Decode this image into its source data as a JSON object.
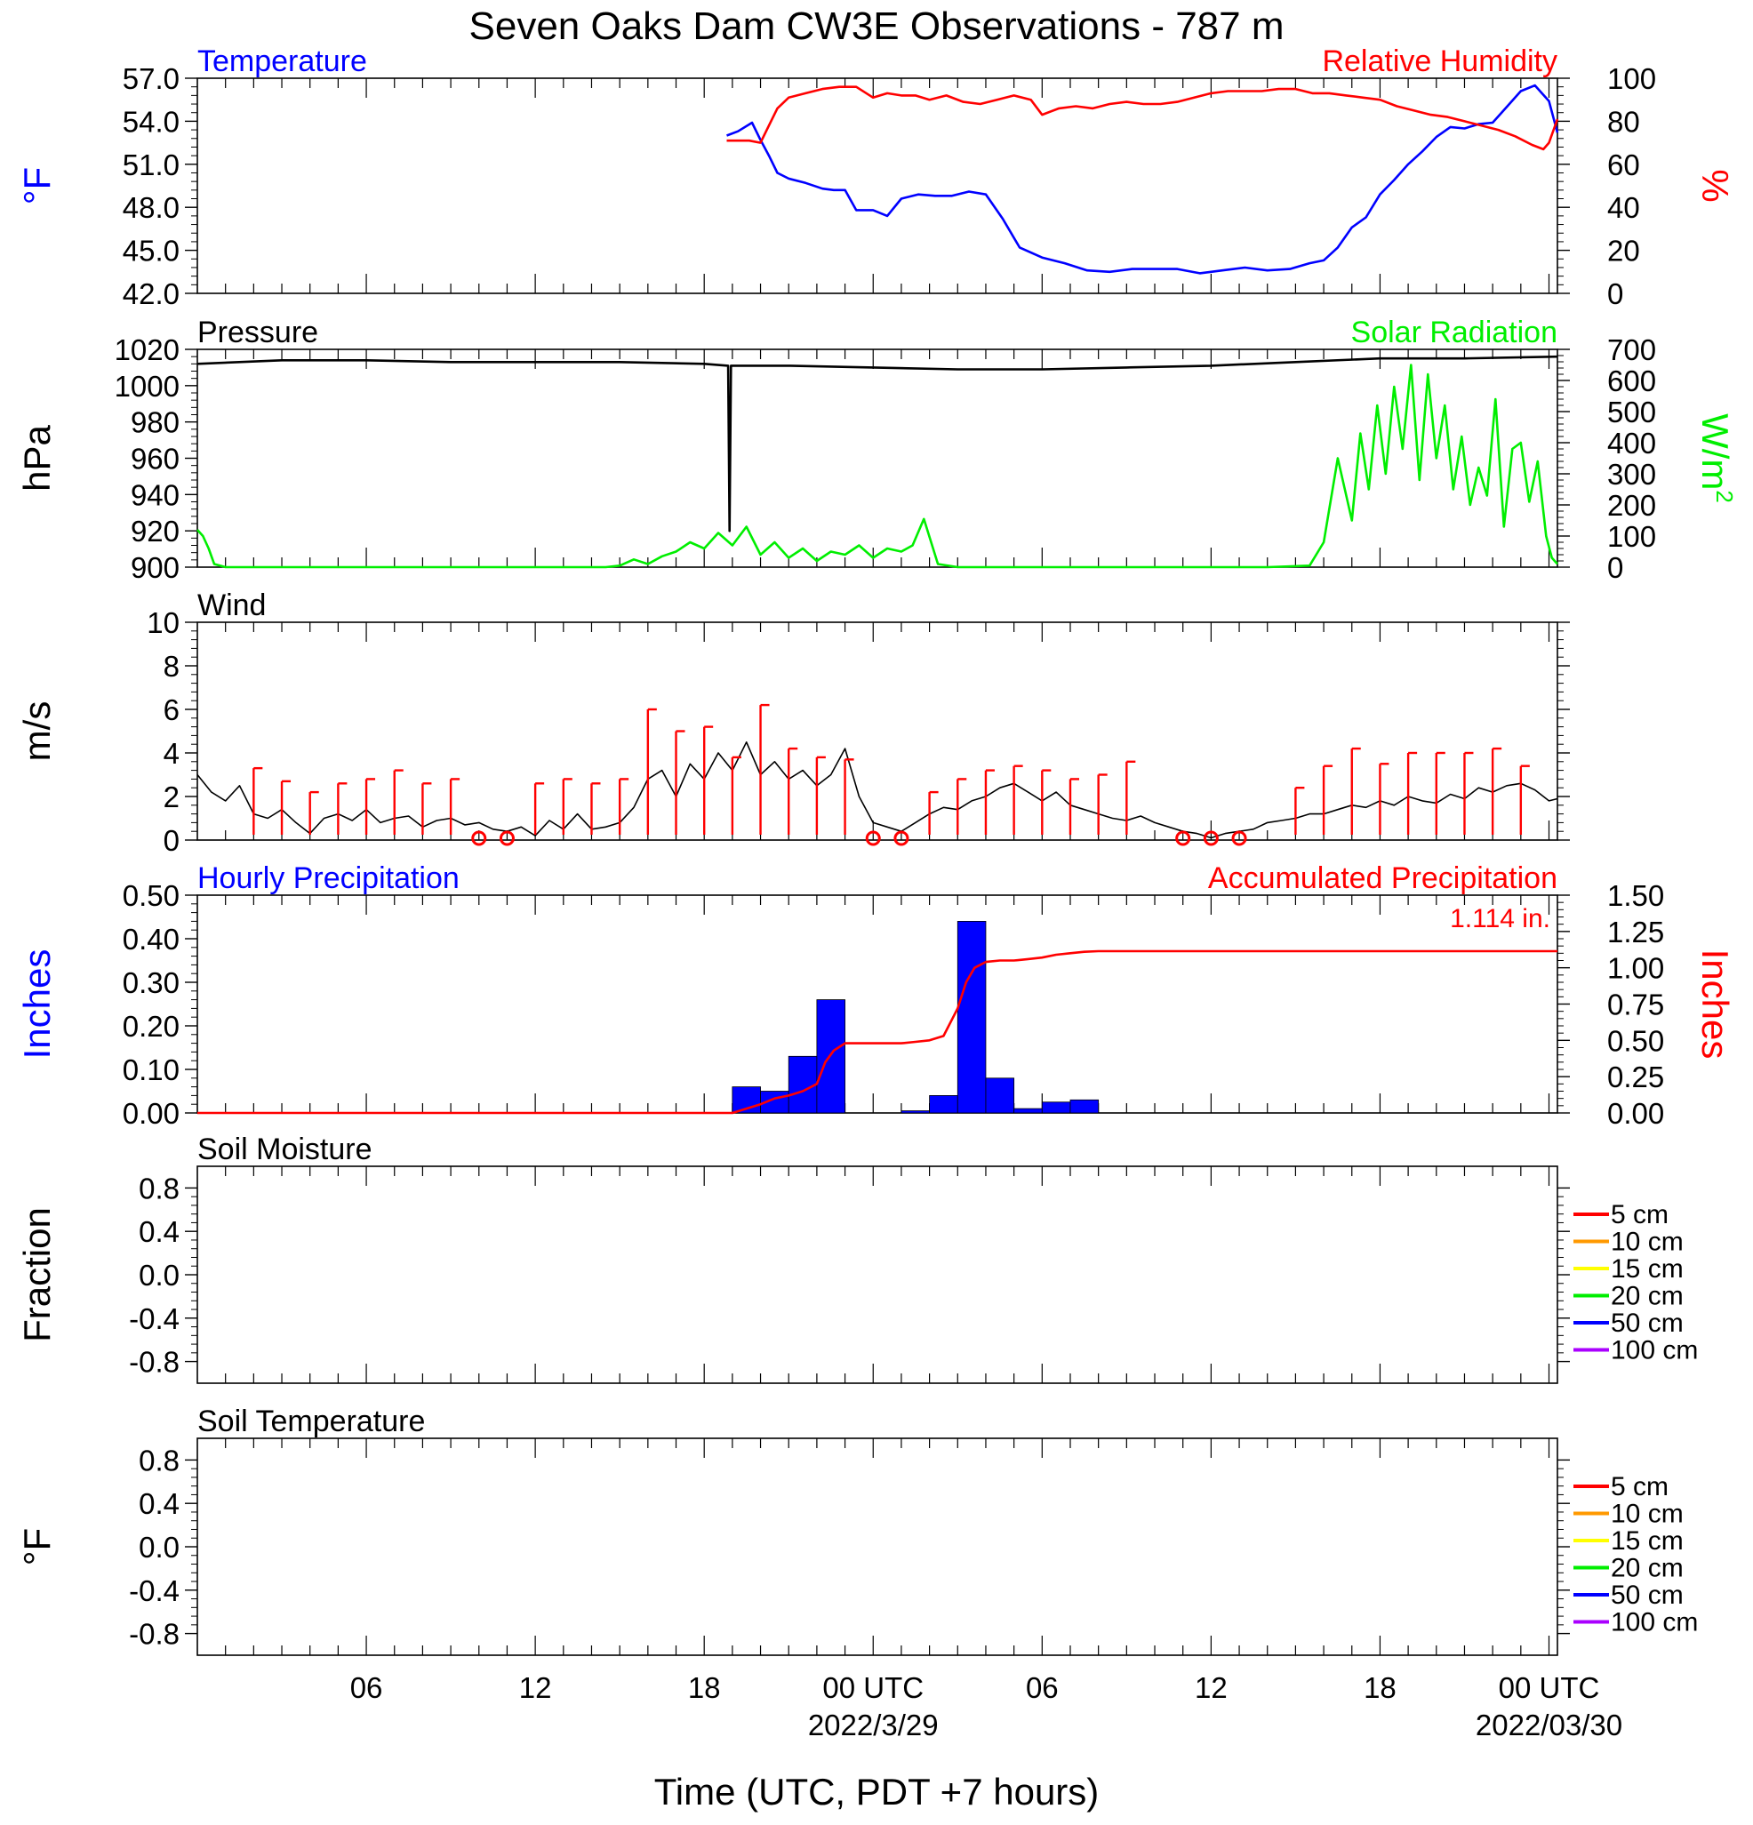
{
  "title": "Seven Oaks Dam CW3E Observations - 787 m",
  "xlabel": "Time (UTC, PDT +7 hours)",
  "x_ticks": [
    {
      "hour": 6,
      "label": "06",
      "sub": ""
    },
    {
      "hour": 12,
      "label": "12",
      "sub": ""
    },
    {
      "hour": 18,
      "label": "18",
      "sub": ""
    },
    {
      "hour": 24,
      "label": "00 UTC",
      "sub": "2022/3/29"
    },
    {
      "hour": 30,
      "label": "06",
      "sub": ""
    },
    {
      "hour": 36,
      "label": "12",
      "sub": ""
    },
    {
      "hour": 42,
      "label": "18",
      "sub": ""
    },
    {
      "hour": 48,
      "label": "00 UTC",
      "sub": "2022/03/30"
    }
  ],
  "colors": {
    "temperature": "#0000ff",
    "humidity": "#ff0000",
    "pressure": "#000000",
    "solar": "#00ee00",
    "wind": "#000000",
    "gust": "#ff0000",
    "hourly_precip": "#0000ff",
    "accum_precip": "#ff0000"
  },
  "chart_data": [
    {
      "id": "temp_rh",
      "type": "line",
      "left_title": "Temperature",
      "right_title": "Relative Humidity",
      "ylabel_left": "°F",
      "ylabel_right": "%",
      "ylim_left": [
        42.0,
        57.0
      ],
      "yticks_left": [
        "57.0",
        "54.0",
        "51.0",
        "48.0",
        "45.0",
        "42.0"
      ],
      "ylim_right": [
        0,
        100
      ],
      "yticks_right": [
        "100",
        "80",
        "60",
        "40",
        "20",
        "0"
      ],
      "series": [
        {
          "name": "Temperature",
          "axis": "left",
          "x": [
            18.8,
            19.2,
            19.7,
            20.0,
            20.3,
            20.6,
            21.0,
            21.6,
            22.2,
            22.6,
            23.0,
            23.4,
            24.0,
            24.5,
            25.0,
            25.6,
            26.2,
            26.8,
            27.4,
            28.0,
            28.6,
            29.2,
            30.0,
            30.8,
            31.6,
            32.4,
            33.2,
            34.0,
            34.8,
            35.6,
            36.4,
            37.2,
            38.0,
            38.8,
            39.5,
            40.0,
            40.5,
            41.0,
            41.5,
            42.0,
            42.5,
            43.0,
            43.5,
            44.0,
            44.5,
            45.0,
            45.5,
            46.0,
            46.5,
            47.0,
            47.5,
            48.0,
            48.3
          ],
          "y": [
            53.0,
            53.3,
            53.9,
            52.7,
            51.6,
            50.4,
            50.0,
            49.7,
            49.3,
            49.2,
            49.2,
            47.8,
            47.8,
            47.4,
            48.6,
            48.9,
            48.8,
            48.8,
            49.1,
            48.9,
            47.2,
            45.2,
            44.5,
            44.1,
            43.6,
            43.5,
            43.7,
            43.7,
            43.7,
            43.4,
            43.6,
            43.8,
            43.6,
            43.7,
            44.1,
            44.3,
            45.2,
            46.6,
            47.3,
            48.9,
            49.9,
            51.0,
            51.9,
            52.9,
            53.6,
            53.5,
            53.8,
            53.9,
            55.0,
            56.1,
            56.5,
            55.4,
            53.2
          ]
        },
        {
          "name": "Relative Humidity",
          "axis": "right",
          "x": [
            18.8,
            19.2,
            19.6,
            20.0,
            20.3,
            20.6,
            21.0,
            21.6,
            22.2,
            22.8,
            23.4,
            24.0,
            24.5,
            25.0,
            25.5,
            26.0,
            26.6,
            27.2,
            27.8,
            28.4,
            29.0,
            29.6,
            30.0,
            30.6,
            31.2,
            31.8,
            32.4,
            33.0,
            33.6,
            34.2,
            34.8,
            35.4,
            36.0,
            36.6,
            37.2,
            37.8,
            38.4,
            39.0,
            39.6,
            40.2,
            40.8,
            41.4,
            42.0,
            42.6,
            43.2,
            43.8,
            44.4,
            45.0,
            45.6,
            46.2,
            46.8,
            47.4,
            47.8,
            48.0,
            48.3
          ],
          "y": [
            71,
            71,
            71,
            70,
            78,
            86,
            91,
            93,
            95,
            96,
            96,
            91,
            93,
            92,
            92,
            90,
            92,
            89,
            88,
            90,
            92,
            90,
            83,
            86,
            87,
            86,
            88,
            89,
            88,
            88,
            89,
            91,
            93,
            94,
            94,
            94,
            95,
            95,
            93,
            93,
            92,
            91,
            90,
            87,
            85,
            83,
            82,
            80,
            78,
            76,
            73,
            69,
            67,
            70,
            81
          ]
        }
      ]
    },
    {
      "id": "pressure_solar",
      "type": "line",
      "left_title": "Pressure",
      "right_title": "Solar Radiation",
      "ylabel_left": "hPa",
      "ylabel_right": "W/m",
      "ylabel_right_sup": "2",
      "ylim_left": [
        900,
        1020
      ],
      "yticks_left": [
        "1020",
        "1000",
        "980",
        "960",
        "940",
        "920",
        "900"
      ],
      "ylim_right": [
        0,
        700
      ],
      "yticks_right": [
        "700",
        "600",
        "500",
        "400",
        "300",
        "200",
        "100",
        "0"
      ],
      "series": [
        {
          "name": "Pressure",
          "axis": "left",
          "x": [
            0,
            3,
            6,
            9,
            12,
            15,
            18,
            18.85,
            18.9,
            18.95,
            19.0,
            21,
            24,
            27,
            30,
            33,
            36,
            39,
            42,
            45,
            48.3
          ],
          "y": [
            1012,
            1014,
            1014,
            1013,
            1013,
            1013,
            1012,
            1011,
            920,
            1011,
            1011,
            1011,
            1010,
            1009,
            1009,
            1010,
            1011,
            1013,
            1015,
            1015,
            1016
          ]
        },
        {
          "name": "Solar Radiation",
          "axis": "right",
          "x": [
            0,
            0.2,
            0.4,
            0.6,
            1,
            3,
            6,
            9,
            12,
            14,
            14.5,
            15,
            15.5,
            16,
            16.5,
            17,
            17.5,
            18,
            18.5,
            19,
            19.5,
            20,
            20.5,
            21,
            21.5,
            22,
            22.5,
            23,
            23.5,
            24,
            24.5,
            25,
            25.4,
            25.8,
            26.3,
            27,
            30,
            33,
            36,
            38,
            39.5,
            40,
            40.5,
            41,
            41.3,
            41.6,
            41.9,
            42.2,
            42.5,
            42.8,
            43.1,
            43.4,
            43.7,
            44,
            44.3,
            44.6,
            44.9,
            45.2,
            45.5,
            45.8,
            46.1,
            46.4,
            46.7,
            47,
            47.3,
            47.6,
            47.9,
            48.1,
            48.3
          ],
          "y": [
            120,
            100,
            60,
            10,
            0,
            0,
            0,
            0,
            0,
            0,
            0,
            5,
            25,
            10,
            35,
            50,
            80,
            60,
            110,
            70,
            130,
            40,
            80,
            30,
            60,
            20,
            50,
            40,
            70,
            30,
            60,
            50,
            70,
            155,
            10,
            0,
            0,
            0,
            0,
            0,
            5,
            80,
            350,
            150,
            430,
            250,
            520,
            300,
            580,
            380,
            650,
            280,
            620,
            350,
            520,
            250,
            420,
            200,
            320,
            230,
            540,
            130,
            380,
            400,
            210,
            340,
            100,
            30,
            10
          ]
        }
      ]
    },
    {
      "id": "wind",
      "type": "line",
      "left_title": "Wind",
      "ylabel_left": "m/s",
      "ylim_left": [
        0,
        10
      ],
      "yticks_left": [
        "10",
        "8",
        "6",
        "4",
        "2",
        "0"
      ],
      "calm_hours": [
        10,
        11,
        24,
        25,
        35,
        36,
        37
      ],
      "series": [
        {
          "name": "Wind",
          "axis": "left",
          "x": [
            0,
            0.5,
            1,
            1.5,
            2,
            2.5,
            3,
            3.5,
            4,
            4.5,
            5,
            5.5,
            6,
            6.5,
            7,
            7.5,
            8,
            8.5,
            9,
            9.5,
            10,
            10.5,
            11,
            11.5,
            12,
            12.5,
            13,
            13.5,
            14,
            14.5,
            15,
            15.5,
            16,
            16.5,
            17,
            17.5,
            18,
            18.5,
            19,
            19.5,
            20,
            20.5,
            21,
            21.5,
            22,
            22.5,
            23,
            23.5,
            24,
            24.5,
            25,
            25.5,
            26,
            26.5,
            27,
            27.5,
            28,
            28.5,
            29,
            29.5,
            30,
            30.5,
            31,
            31.5,
            32,
            32.5,
            33,
            33.5,
            34,
            34.5,
            35,
            35.5,
            36,
            36.5,
            37,
            37.5,
            38,
            38.5,
            39,
            39.5,
            40,
            40.5,
            41,
            41.5,
            42,
            42.5,
            43,
            43.5,
            44,
            44.5,
            45,
            45.5,
            46,
            46.5,
            47,
            47.5,
            48,
            48.3
          ],
          "y": [
            3.0,
            2.2,
            1.8,
            2.5,
            1.2,
            1.0,
            1.4,
            0.8,
            0.3,
            1.0,
            1.2,
            0.9,
            1.4,
            0.8,
            1.0,
            1.1,
            0.6,
            0.9,
            1.0,
            0.7,
            0.8,
            0.5,
            0.4,
            0.6,
            0.2,
            0.9,
            0.5,
            1.2,
            0.5,
            0.6,
            0.8,
            1.5,
            2.8,
            3.2,
            2.0,
            3.5,
            2.8,
            4.0,
            3.2,
            4.5,
            3.0,
            3.6,
            2.8,
            3.2,
            2.5,
            3.0,
            4.2,
            2.0,
            0.8,
            0.6,
            0.4,
            0.8,
            1.2,
            1.5,
            1.4,
            1.8,
            2.0,
            2.4,
            2.6,
            2.2,
            1.8,
            2.2,
            1.6,
            1.4,
            1.2,
            1.0,
            0.9,
            1.1,
            0.8,
            0.6,
            0.4,
            0.3,
            0.1,
            0.3,
            0.4,
            0.5,
            0.8,
            0.9,
            1.0,
            1.2,
            1.2,
            1.4,
            1.6,
            1.5,
            1.8,
            1.6,
            2.0,
            1.8,
            1.7,
            2.1,
            1.9,
            2.4,
            2.2,
            2.5,
            2.6,
            2.3,
            1.8,
            1.9
          ]
        },
        {
          "name": "Gust",
          "axis": "left",
          "x": [
            2,
            3,
            4,
            5,
            6,
            7,
            8,
            9,
            12,
            13,
            14,
            15,
            16,
            17,
            18,
            19,
            20,
            21,
            22,
            23,
            26,
            27,
            28,
            29,
            30,
            31,
            32,
            33,
            39,
            40,
            41,
            42,
            43,
            44,
            45,
            46,
            47
          ],
          "y": [
            3.3,
            2.7,
            2.2,
            2.6,
            2.8,
            3.2,
            2.6,
            2.8,
            2.6,
            2.8,
            2.6,
            2.8,
            6.0,
            5.0,
            5.2,
            3.8,
            6.2,
            4.2,
            3.8,
            3.7,
            2.2,
            2.8,
            3.2,
            3.4,
            3.2,
            2.8,
            3.0,
            3.6,
            2.4,
            3.4,
            4.2,
            3.5,
            4.0,
            4.0,
            4.0,
            4.2,
            3.4
          ]
        }
      ]
    },
    {
      "id": "precip",
      "type": "bar",
      "left_title": "Hourly Precipitation",
      "right_title": "Accumulated Precipitation",
      "total_label": "1.114 in.",
      "ylabel_left": "Inches",
      "ylabel_right": "Inches",
      "ylim_left": [
        0,
        0.5
      ],
      "yticks_left": [
        "0.50",
        "0.40",
        "0.30",
        "0.20",
        "0.10",
        "0.00"
      ],
      "ylim_right": [
        0,
        1.5
      ],
      "yticks_right": [
        "1.50",
        "1.25",
        "1.00",
        "0.75",
        "0.50",
        "0.25",
        "0.00"
      ],
      "series": [
        {
          "name": "Hourly Precipitation",
          "axis": "left",
          "x": [
            19,
            20,
            21,
            22,
            23,
            24,
            25,
            26,
            27,
            28,
            29,
            30,
            31,
            32
          ],
          "y": [
            0.06,
            0.05,
            0.13,
            0.26,
            0,
            0,
            0.005,
            0.04,
            0.44,
            0.08,
            0.01,
            0.025,
            0.03,
            0
          ]
        },
        {
          "name": "Accumulated Precipitation",
          "axis": "right",
          "x": [
            0,
            19,
            19.5,
            20,
            20.5,
            21,
            21.5,
            22,
            22.3,
            22.6,
            23,
            23.5,
            24,
            24.5,
            25,
            25.5,
            26,
            26.5,
            27,
            27.3,
            27.6,
            28,
            28.5,
            29,
            29.5,
            30,
            30.5,
            31,
            31.5,
            32,
            48.3
          ],
          "y": [
            0,
            0,
            0.03,
            0.06,
            0.1,
            0.12,
            0.15,
            0.2,
            0.35,
            0.43,
            0.48,
            0.48,
            0.48,
            0.48,
            0.48,
            0.49,
            0.5,
            0.53,
            0.72,
            0.9,
            1.0,
            1.04,
            1.05,
            1.05,
            1.06,
            1.07,
            1.09,
            1.1,
            1.11,
            1.114,
            1.114
          ]
        }
      ]
    },
    {
      "id": "soil_moisture",
      "type": "line",
      "left_title": "Soil Moisture",
      "ylabel_left": "Fraction",
      "ylim_left": [
        -1,
        1
      ],
      "yticks_left": [
        "0.8",
        "0.4",
        "0.0",
        "-0.4",
        "-0.8"
      ],
      "legend": [
        {
          "label": "5 cm",
          "color": "#ff0000"
        },
        {
          "label": "10 cm",
          "color": "#ff9900"
        },
        {
          "label": "15 cm",
          "color": "#ffff00"
        },
        {
          "label": "20 cm",
          "color": "#00ee00"
        },
        {
          "label": "50 cm",
          "color": "#0000ff"
        },
        {
          "label": "100 cm",
          "color": "#aa00ff"
        }
      ],
      "series": []
    },
    {
      "id": "soil_temperature",
      "type": "line",
      "left_title": "Soil Temperature",
      "ylabel_left": "°F",
      "ylim_left": [
        -1,
        1
      ],
      "yticks_left": [
        "0.8",
        "0.4",
        "0.0",
        "-0.4",
        "-0.8"
      ],
      "legend": [
        {
          "label": "5 cm",
          "color": "#ff0000"
        },
        {
          "label": "10 cm",
          "color": "#ff9900"
        },
        {
          "label": "15 cm",
          "color": "#ffff00"
        },
        {
          "label": "20 cm",
          "color": "#00ee00"
        },
        {
          "label": "50 cm",
          "color": "#0000ff"
        },
        {
          "label": "100 cm",
          "color": "#aa00ff"
        }
      ],
      "series": []
    }
  ]
}
